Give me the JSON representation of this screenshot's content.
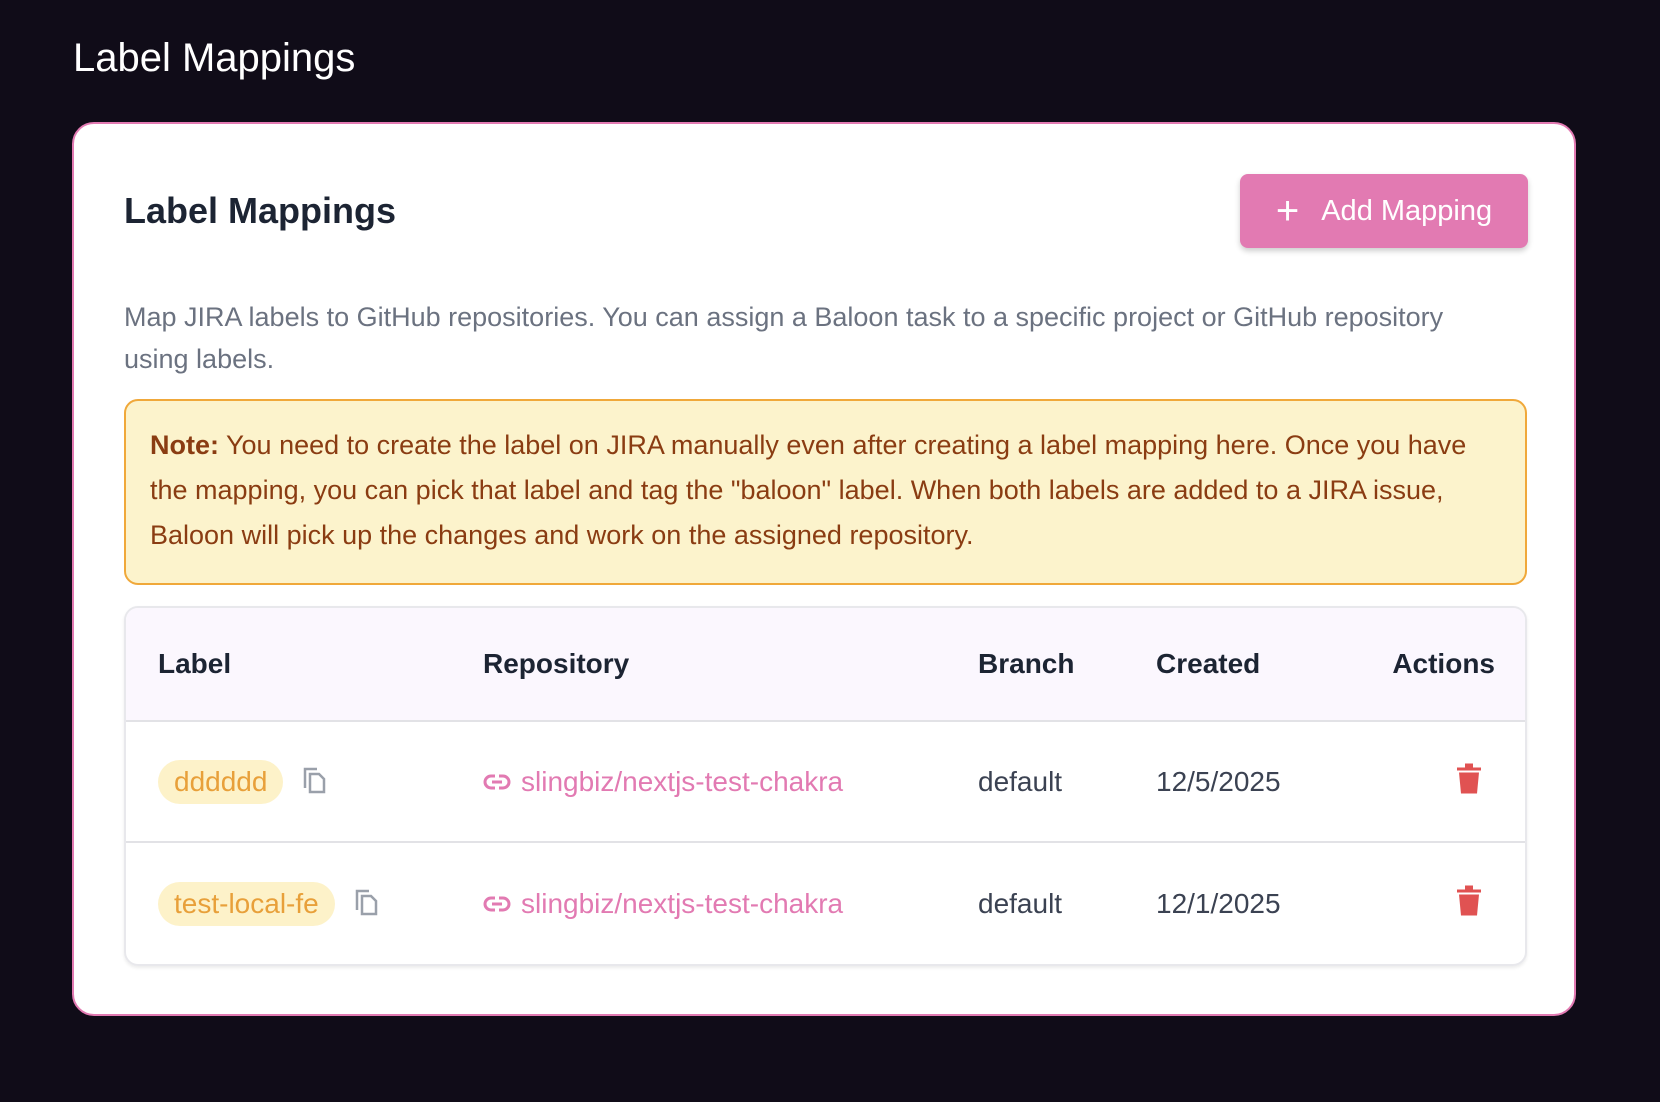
{
  "page": {
    "title": "Label Mappings"
  },
  "card": {
    "title": "Label Mappings",
    "add_button": "Add Mapping",
    "description": "Map JIRA labels to GitHub repositories. You can assign a Baloon task to a specific project or GitHub repository using labels.",
    "note_label": "Note:",
    "note_text": " You need to create the label on JIRA manually even after creating a label mapping here. Once you have the mapping, you can pick that label and tag the \"baloon\" label. When both labels are added to a JIRA issue, Baloon will pick up the changes and work on the assigned repository."
  },
  "table": {
    "headers": [
      "Label",
      "Repository",
      "Branch",
      "Created",
      "Actions"
    ],
    "rows": [
      {
        "label": "dddddd",
        "repository": "slingbiz/nextjs-test-chakra",
        "branch": "default",
        "created": "12/5/2025"
      },
      {
        "label": "test-local-fe",
        "repository": "slingbiz/nextjs-test-chakra",
        "branch": "default",
        "created": "12/1/2025"
      }
    ]
  },
  "colors": {
    "accent": "#e27ab2",
    "note_bg": "#fcf3cc",
    "note_border": "#f0a83a",
    "delete": "#e05252",
    "badge_bg": "#fdf2c9",
    "badge_text": "#e8a03a"
  }
}
